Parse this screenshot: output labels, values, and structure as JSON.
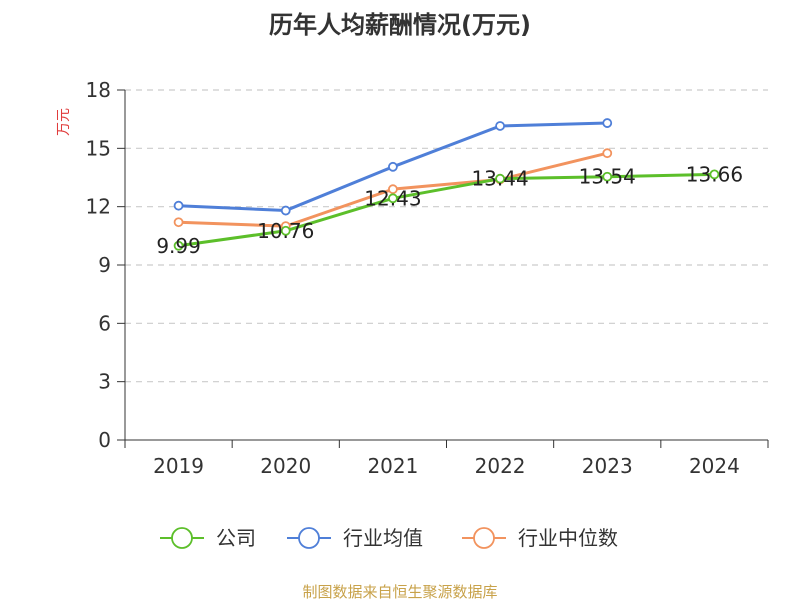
{
  "chart_data": {
    "type": "line",
    "title": "历年人均薪酬情况(万元)",
    "ylabel": "万元",
    "xlabel": "",
    "categories": [
      "2019",
      "2020",
      "2021",
      "2022",
      "2023",
      "2024"
    ],
    "ylim": [
      0,
      18
    ],
    "yticks": [
      0,
      3,
      6,
      9,
      12,
      15,
      18
    ],
    "grid": true,
    "legend_position": "bottom",
    "series": [
      {
        "name": "公司",
        "color": "#5cbf2a",
        "values": [
          9.99,
          10.76,
          12.43,
          13.44,
          13.54,
          13.66
        ],
        "labels": [
          "9.99",
          "10.76",
          "12.43",
          "13.44",
          "13.54",
          "13.66"
        ]
      },
      {
        "name": "行业均值",
        "color": "#4f7fd8",
        "values": [
          12.05,
          11.8,
          14.05,
          16.15,
          16.3,
          null
        ]
      },
      {
        "name": "行业中位数",
        "color": "#f2935e",
        "values": [
          11.2,
          11.0,
          12.9,
          13.4,
          14.75,
          null
        ]
      }
    ],
    "source": "制图数据来自恒生聚源数据库"
  }
}
